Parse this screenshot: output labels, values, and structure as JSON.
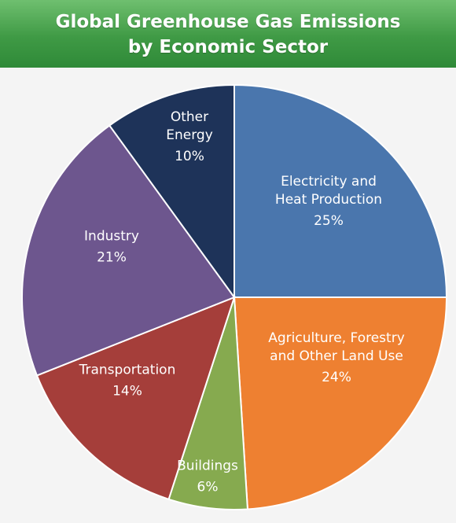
{
  "header": {
    "title_line1": "Global Greenhouse Gas Emissions",
    "title_line2": "by Economic Sector"
  },
  "chart_data": {
    "type": "pie",
    "title": "Global Greenhouse Gas Emissions by Economic Sector",
    "start_angle_deg": 0,
    "direction": "clockwise",
    "slices": [
      {
        "name": "Electricity and Heat Production",
        "label_lines": [
          "Electricity and",
          "Heat Production"
        ],
        "value": 25,
        "display": "25%",
        "color": "#4a76ad"
      },
      {
        "name": "Agriculture, Forestry and Other Land Use",
        "label_lines": [
          "Agriculture, Forestry",
          "and Other Land Use"
        ],
        "value": 24,
        "display": "24%",
        "color": "#ee8031"
      },
      {
        "name": "Buildings",
        "label_lines": [
          "Buildings"
        ],
        "value": 6,
        "display": "6%",
        "color": "#86aa4f"
      },
      {
        "name": "Transportation",
        "label_lines": [
          "Transportation"
        ],
        "value": 14,
        "display": "14%",
        "color": "#a53e3a"
      },
      {
        "name": "Industry",
        "label_lines": [
          "Industry"
        ],
        "value": 21,
        "display": "21%",
        "color": "#6d568e"
      },
      {
        "name": "Other Energy",
        "label_lines": [
          "Other",
          "Energy"
        ],
        "value": 10,
        "display": "10%",
        "color": "#1e3359"
      }
    ]
  }
}
